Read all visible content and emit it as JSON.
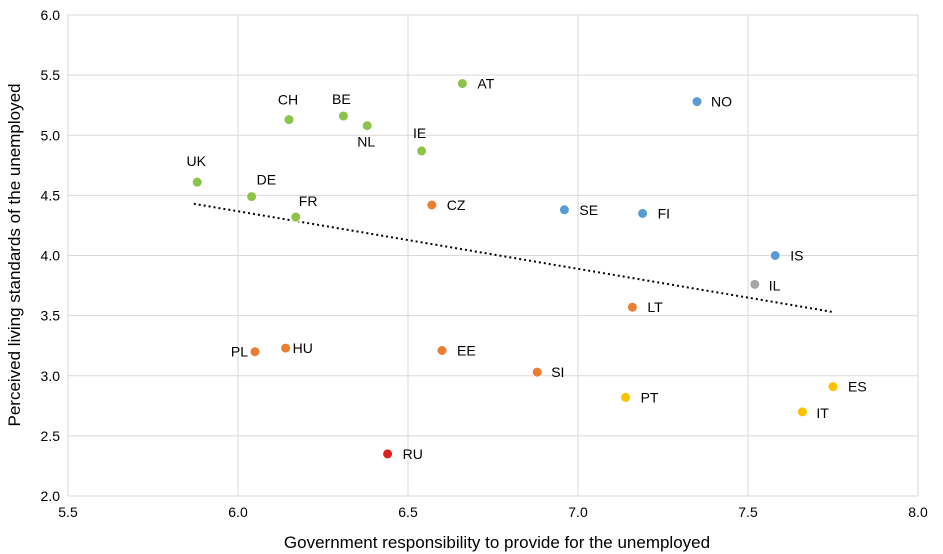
{
  "chart_data": {
    "type": "scatter",
    "title": "",
    "xlabel": "Government responsibility to provide for the unemployed",
    "ylabel": "Perceived living standards of the unemployed",
    "xlim": [
      5.5,
      8.0
    ],
    "ylim": [
      2.0,
      6.0
    ],
    "x_ticks": [
      5.5,
      6.0,
      6.5,
      7.0,
      7.5,
      8.0
    ],
    "x_tick_labels": [
      "5.5",
      "6.0",
      "6.5",
      "7.0",
      "7.5",
      "8.0"
    ],
    "y_ticks": [
      2.0,
      2.5,
      3.0,
      3.5,
      4.0,
      4.5,
      5.0,
      5.5,
      6.0
    ],
    "y_tick_labels": [
      "2.0",
      "2.5",
      "3.0",
      "3.5",
      "4.0",
      "4.5",
      "5.0",
      "5.5",
      "6.0"
    ],
    "grid": true,
    "legend": "none",
    "colors": {
      "green": "#8cc34a",
      "blue": "#5b9bd5",
      "orange": "#ed7d31",
      "grey": "#a6a6a6",
      "yellow": "#ffc000",
      "red": "#e0201c"
    },
    "points": [
      {
        "label": "AT",
        "x": 6.66,
        "y": 5.43,
        "color": "green"
      },
      {
        "label": "BE",
        "x": 6.31,
        "y": 5.16,
        "color": "green"
      },
      {
        "label": "CH",
        "x": 6.15,
        "y": 5.13,
        "color": "green"
      },
      {
        "label": "NL",
        "x": 6.38,
        "y": 5.08,
        "color": "green"
      },
      {
        "label": "IE",
        "x": 6.54,
        "y": 4.87,
        "color": "green"
      },
      {
        "label": "UK",
        "x": 5.88,
        "y": 4.61,
        "color": "green"
      },
      {
        "label": "DE",
        "x": 6.04,
        "y": 4.49,
        "color": "green"
      },
      {
        "label": "FR",
        "x": 6.17,
        "y": 4.32,
        "color": "green"
      },
      {
        "label": "NO",
        "x": 7.35,
        "y": 5.28,
        "color": "blue"
      },
      {
        "label": "SE",
        "x": 6.96,
        "y": 4.38,
        "color": "blue"
      },
      {
        "label": "FI",
        "x": 7.19,
        "y": 4.35,
        "color": "blue"
      },
      {
        "label": "IS",
        "x": 7.58,
        "y": 4.0,
        "color": "blue"
      },
      {
        "label": "IL",
        "x": 7.52,
        "y": 3.76,
        "color": "grey"
      },
      {
        "label": "CZ",
        "x": 6.57,
        "y": 4.42,
        "color": "orange"
      },
      {
        "label": "LT",
        "x": 7.16,
        "y": 3.57,
        "color": "orange"
      },
      {
        "label": "PL",
        "x": 6.05,
        "y": 3.2,
        "color": "orange"
      },
      {
        "label": "HU",
        "x": 6.14,
        "y": 3.23,
        "color": "orange"
      },
      {
        "label": "EE",
        "x": 6.6,
        "y": 3.21,
        "color": "orange"
      },
      {
        "label": "SI",
        "x": 6.88,
        "y": 3.03,
        "color": "orange"
      },
      {
        "label": "PT",
        "x": 7.14,
        "y": 2.82,
        "color": "yellow"
      },
      {
        "label": "ES",
        "x": 7.75,
        "y": 2.91,
        "color": "yellow"
      },
      {
        "label": "IT",
        "x": 7.66,
        "y": 2.7,
        "color": "yellow"
      },
      {
        "label": "RU",
        "x": 6.44,
        "y": 2.35,
        "color": "red"
      }
    ],
    "trendline": {
      "style": "dotted",
      "x": [
        5.87,
        7.75
      ],
      "y": [
        4.43,
        3.53
      ]
    }
  }
}
